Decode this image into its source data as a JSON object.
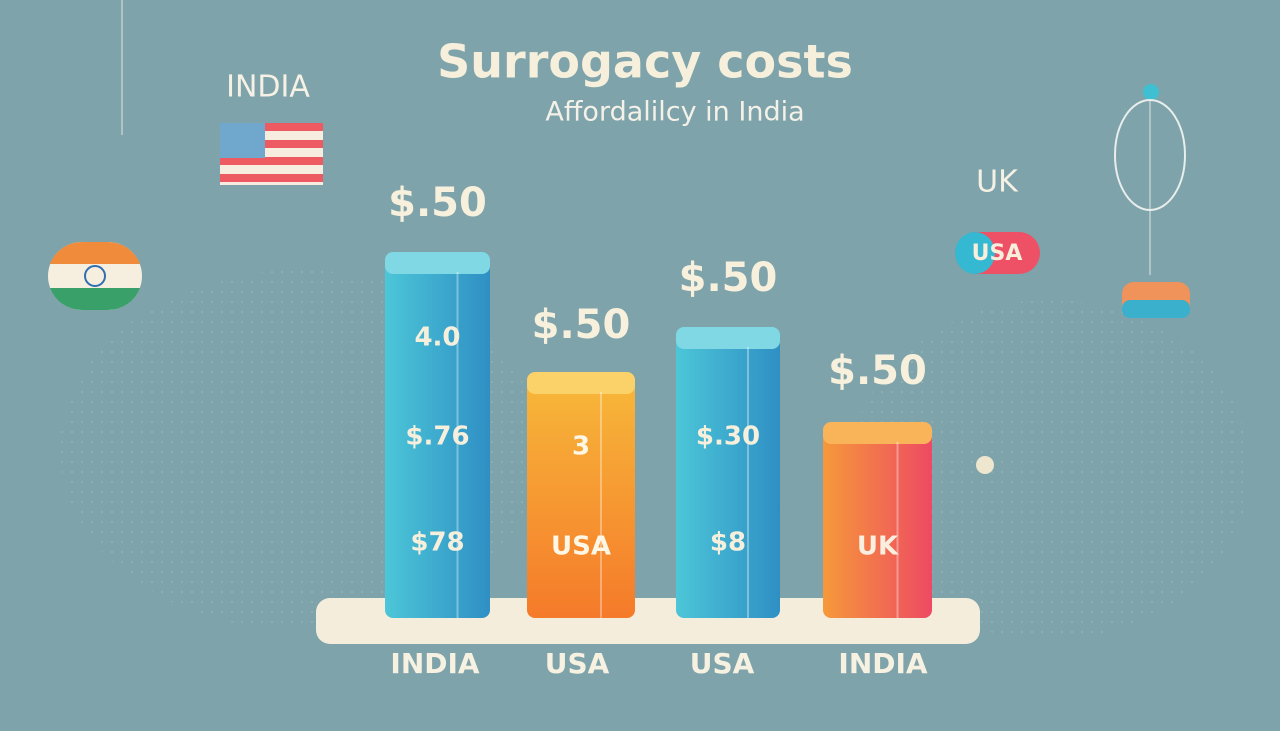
{
  "header": {
    "title": "Surrogacy costs",
    "subtitle": "Affordalilcy in India"
  },
  "corner_labels": [
    "INDIA",
    "UK",
    "USA"
  ],
  "bars": [
    {
      "label": "INDIA",
      "top_label": "$.50",
      "inner_labels": [
        "4.0",
        "$.76",
        "$78"
      ]
    },
    {
      "label": "USA",
      "top_label": "$.50",
      "inner_labels": [
        "3",
        "USA"
      ]
    },
    {
      "label": "USA",
      "top_label": "$.50",
      "inner_labels": [
        "$.30",
        "$8"
      ]
    },
    {
      "label": "INDIA",
      "top_label": "$.50",
      "inner_labels": [
        "UK"
      ]
    }
  ]
}
